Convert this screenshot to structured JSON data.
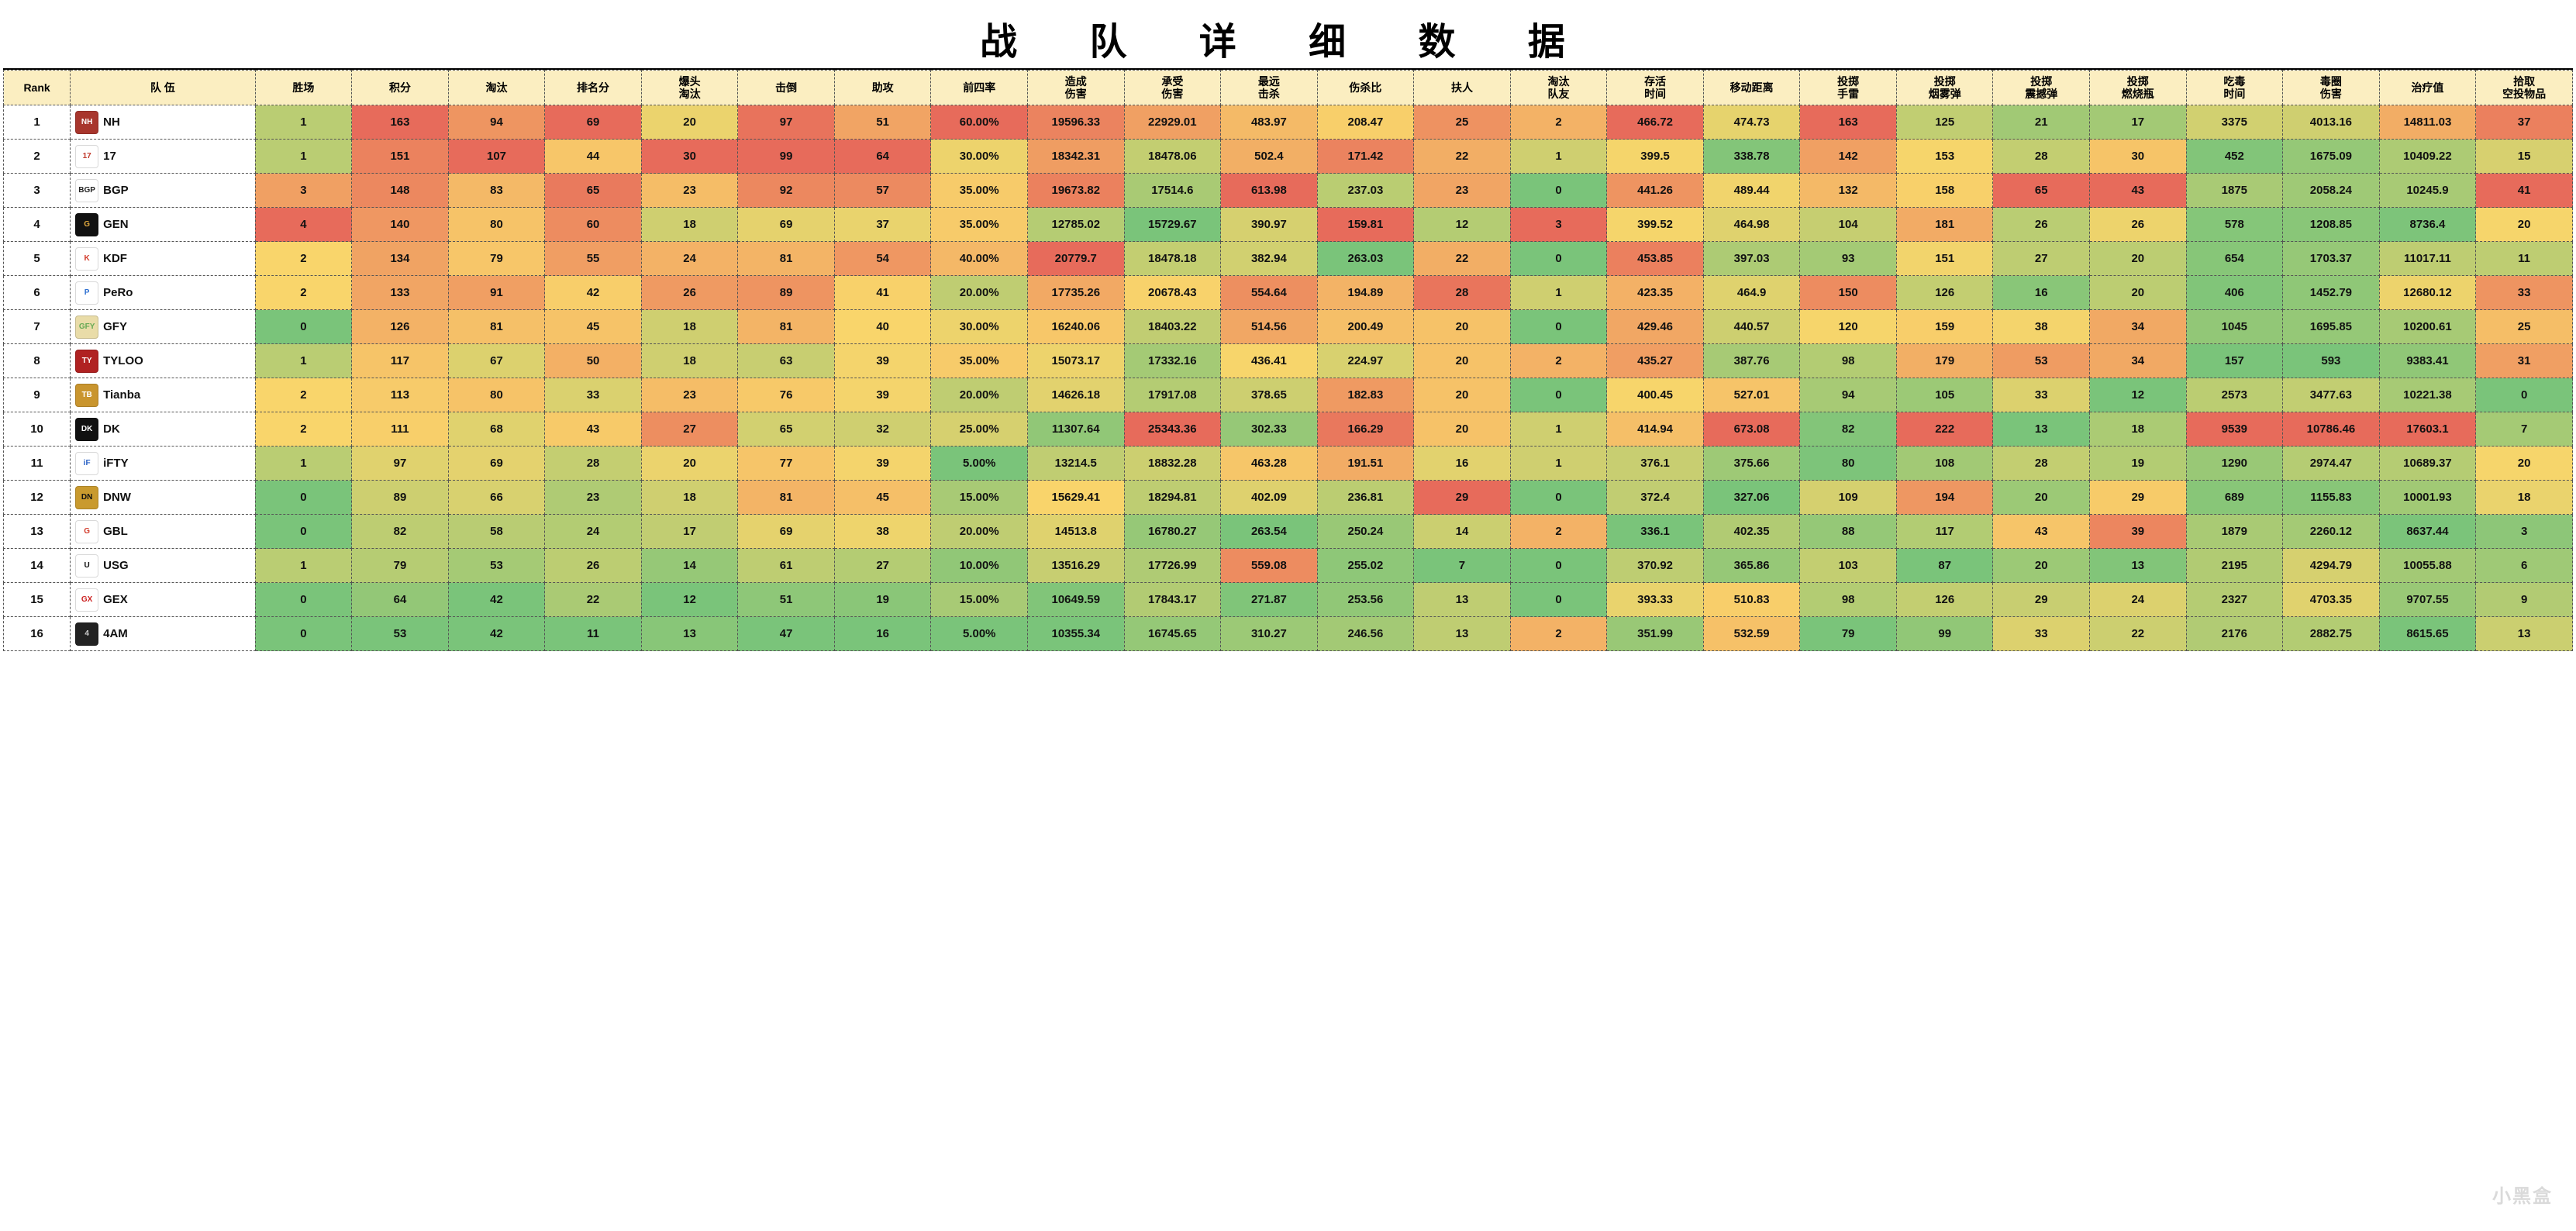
{
  "title": "战 队 详 细 数 据",
  "watermark": "小黑盒",
  "heatmap_palette": {
    "comment": "5-step red→yellow→green scale used per column (high vs low depends on metric)",
    "colors": [
      "#e76b5b",
      "#f2a55f",
      "#f9d56b",
      "#c9dd7a",
      "#7ac47a"
    ]
  },
  "columns": [
    {
      "key": "rank",
      "label": "Rank"
    },
    {
      "key": "team",
      "label": "队 伍"
    },
    {
      "key": "wins",
      "label": "胜场"
    },
    {
      "key": "points",
      "label": "积分"
    },
    {
      "key": "elims",
      "label": "淘汰"
    },
    {
      "key": "rank_pts",
      "label": "排名分"
    },
    {
      "key": "hs_elims",
      "label": "爆头\n淘汰"
    },
    {
      "key": "knocks",
      "label": "击倒"
    },
    {
      "key": "assists",
      "label": "助攻"
    },
    {
      "key": "top4",
      "label": "前四率"
    },
    {
      "key": "dmg_dealt",
      "label": "造成\n伤害"
    },
    {
      "key": "dmg_taken",
      "label": "承受\n伤害"
    },
    {
      "key": "longest_kill",
      "label": "最远\n击杀"
    },
    {
      "key": "dmg_kill_ratio",
      "label": "伤杀比"
    },
    {
      "key": "revives",
      "label": "扶人"
    },
    {
      "key": "tk",
      "label": "淘汰\n队友"
    },
    {
      "key": "survive",
      "label": "存活\n时间"
    },
    {
      "key": "move_dist",
      "label": "移动距离"
    },
    {
      "key": "frag",
      "label": "投掷\n手雷"
    },
    {
      "key": "smoke",
      "label": "投掷\n烟雾弹"
    },
    {
      "key": "stun",
      "label": "投掷\n震撼弹"
    },
    {
      "key": "molotov",
      "label": "投掷\n燃烧瓶"
    },
    {
      "key": "poison_time",
      "label": "吃毒\n时间"
    },
    {
      "key": "zone_dmg",
      "label": "毒圈\n伤害"
    },
    {
      "key": "heal",
      "label": "治疗值"
    },
    {
      "key": "airdrop",
      "label": "拾取\n空投物品"
    }
  ],
  "team_logos": {
    "NH": {
      "bg": "#a8362d",
      "fg": "#fff",
      "txt": "NH"
    },
    "17": {
      "bg": "#ffffff",
      "fg": "#c0392b",
      "txt": "17"
    },
    "BGP": {
      "bg": "#ffffff",
      "fg": "#222",
      "txt": "BGP"
    },
    "GEN": {
      "bg": "#111111",
      "fg": "#e1a93e",
      "txt": "G"
    },
    "KDF": {
      "bg": "#ffffff",
      "fg": "#d23b2b",
      "txt": "K"
    },
    "PeRo": {
      "bg": "#ffffff",
      "fg": "#2c6fd1",
      "txt": "P"
    },
    "GFY": {
      "bg": "#e9dca8",
      "fg": "#6a5",
      "txt": "GFY"
    },
    "TYLOO": {
      "bg": "#b02222",
      "fg": "#fff",
      "txt": "TY"
    },
    "Tianba": {
      "bg": "#c9952e",
      "fg": "#fff",
      "txt": "TB"
    },
    "DK": {
      "bg": "#111111",
      "fg": "#fff",
      "txt": "DK"
    },
    "iFTY": {
      "bg": "#ffffff",
      "fg": "#2860c4",
      "txt": "iF"
    },
    "DNW": {
      "bg": "#c99a2e",
      "fg": "#111",
      "txt": "DN"
    },
    "GBL": {
      "bg": "#ffffff",
      "fg": "#d23b2b",
      "txt": "G"
    },
    "USG": {
      "bg": "#ffffff",
      "fg": "#111",
      "txt": "U"
    },
    "GEX": {
      "bg": "#ffffff",
      "fg": "#c22",
      "txt": "GX"
    },
    "4AM": {
      "bg": "#222222",
      "fg": "#ccc",
      "txt": "4"
    }
  },
  "metric_direction_high_is_red": {
    "wins": true,
    "points": true,
    "elims": true,
    "rank_pts": true,
    "hs_elims": true,
    "knocks": true,
    "assists": true,
    "top4": true,
    "dmg_dealt": true,
    "dmg_taken": true,
    "longest_kill": true,
    "dmg_kill_ratio": false,
    "revives": true,
    "tk": true,
    "survive": true,
    "move_dist": true,
    "frag": true,
    "smoke": true,
    "stun": true,
    "molotov": true,
    "poison_time": true,
    "zone_dmg": true,
    "heal": true,
    "airdrop": true
  },
  "rows": [
    {
      "rank": 1,
      "team": "NH",
      "wins": 1,
      "points": 163,
      "elims": 94,
      "rank_pts": 69,
      "hs_elims": 20,
      "knocks": 97,
      "assists": 51,
      "top4": "60.00%",
      "dmg_dealt": 19596.33,
      "dmg_taken": 22929.01,
      "longest_kill": 483.97,
      "dmg_kill_ratio": 208.47,
      "revives": 25,
      "tk": 2,
      "survive": 466.72,
      "move_dist": 474.73,
      "frag": 163,
      "smoke": 125,
      "stun": 21,
      "molotov": 17,
      "poison_time": 3375,
      "zone_dmg": 4013.16,
      "heal": 14811.03,
      "airdrop": 37
    },
    {
      "rank": 2,
      "team": "17",
      "wins": 1,
      "points": 151,
      "elims": 107,
      "rank_pts": 44,
      "hs_elims": 30,
      "knocks": 99,
      "assists": 64,
      "top4": "30.00%",
      "dmg_dealt": 18342.31,
      "dmg_taken": 18478.06,
      "longest_kill": 502.4,
      "dmg_kill_ratio": 171.42,
      "revives": 22,
      "tk": 1,
      "survive": 399.5,
      "move_dist": 338.78,
      "frag": 142,
      "smoke": 153,
      "stun": 28,
      "molotov": 30,
      "poison_time": 452,
      "zone_dmg": 1675.09,
      "heal": 10409.22,
      "airdrop": 15
    },
    {
      "rank": 3,
      "team": "BGP",
      "wins": 3,
      "points": 148,
      "elims": 83,
      "rank_pts": 65,
      "hs_elims": 23,
      "knocks": 92,
      "assists": 57,
      "top4": "35.00%",
      "dmg_dealt": 19673.82,
      "dmg_taken": 17514.6,
      "longest_kill": 613.98,
      "dmg_kill_ratio": 237.03,
      "revives": 23,
      "tk": 0,
      "survive": 441.26,
      "move_dist": 489.44,
      "frag": 132,
      "smoke": 158,
      "stun": 65,
      "molotov": 43,
      "poison_time": 1875,
      "zone_dmg": 2058.24,
      "heal": 10245.9,
      "airdrop": 41
    },
    {
      "rank": 4,
      "team": "GEN",
      "wins": 4,
      "points": 140,
      "elims": 80,
      "rank_pts": 60,
      "hs_elims": 18,
      "knocks": 69,
      "assists": 37,
      "top4": "35.00%",
      "dmg_dealt": 12785.02,
      "dmg_taken": 15729.67,
      "longest_kill": 390.97,
      "dmg_kill_ratio": 159.81,
      "revives": 12,
      "tk": 3,
      "survive": 399.52,
      "move_dist": 464.98,
      "frag": 104,
      "smoke": 181,
      "stun": 26,
      "molotov": 26,
      "poison_time": 578,
      "zone_dmg": 1208.85,
      "heal": 8736.4,
      "airdrop": 20
    },
    {
      "rank": 5,
      "team": "KDF",
      "wins": 2,
      "points": 134,
      "elims": 79,
      "rank_pts": 55,
      "hs_elims": 24,
      "knocks": 81,
      "assists": 54,
      "top4": "40.00%",
      "dmg_dealt": 20779.7,
      "dmg_taken": 18478.18,
      "longest_kill": 382.94,
      "dmg_kill_ratio": 263.03,
      "revives": 22,
      "tk": 0,
      "survive": 453.85,
      "move_dist": 397.03,
      "frag": 93,
      "smoke": 151,
      "stun": 27,
      "molotov": 20,
      "poison_time": 654,
      "zone_dmg": 1703.37,
      "heal": 11017.11,
      "airdrop": 11
    },
    {
      "rank": 6,
      "team": "PeRo",
      "wins": 2,
      "points": 133,
      "elims": 91,
      "rank_pts": 42,
      "hs_elims": 26,
      "knocks": 89,
      "assists": 41,
      "top4": "20.00%",
      "dmg_dealt": 17735.26,
      "dmg_taken": 20678.43,
      "longest_kill": 554.64,
      "dmg_kill_ratio": 194.89,
      "revives": 28,
      "tk": 1,
      "survive": 423.35,
      "move_dist": 464.9,
      "frag": 150,
      "smoke": 126,
      "stun": 16,
      "molotov": 20,
      "poison_time": 406,
      "zone_dmg": 1452.79,
      "heal": 12680.12,
      "airdrop": 33
    },
    {
      "rank": 7,
      "team": "GFY",
      "wins": 0,
      "points": 126,
      "elims": 81,
      "rank_pts": 45,
      "hs_elims": 18,
      "knocks": 81,
      "assists": 40,
      "top4": "30.00%",
      "dmg_dealt": 16240.06,
      "dmg_taken": 18403.22,
      "longest_kill": 514.56,
      "dmg_kill_ratio": 200.49,
      "revives": 20,
      "tk": 0,
      "survive": 429.46,
      "move_dist": 440.57,
      "frag": 120,
      "smoke": 159,
      "stun": 38,
      "molotov": 34,
      "poison_time": 1045,
      "zone_dmg": 1695.85,
      "heal": 10200.61,
      "airdrop": 25
    },
    {
      "rank": 8,
      "team": "TYLOO",
      "wins": 1,
      "points": 117,
      "elims": 67,
      "rank_pts": 50,
      "hs_elims": 18,
      "knocks": 63,
      "assists": 39,
      "top4": "35.00%",
      "dmg_dealt": 15073.17,
      "dmg_taken": 17332.16,
      "longest_kill": 436.41,
      "dmg_kill_ratio": 224.97,
      "revives": 20,
      "tk": 2,
      "survive": 435.27,
      "move_dist": 387.76,
      "frag": 98,
      "smoke": 179,
      "stun": 53,
      "molotov": 34,
      "poison_time": 157,
      "zone_dmg": 593.0,
      "heal": 9383.41,
      "airdrop": 31
    },
    {
      "rank": 9,
      "team": "Tianba",
      "wins": 2,
      "points": 113,
      "elims": 80,
      "rank_pts": 33,
      "hs_elims": 23,
      "knocks": 76,
      "assists": 39,
      "top4": "20.00%",
      "dmg_dealt": 14626.18,
      "dmg_taken": 17917.08,
      "longest_kill": 378.65,
      "dmg_kill_ratio": 182.83,
      "revives": 20,
      "tk": 0,
      "survive": 400.45,
      "move_dist": 527.01,
      "frag": 94,
      "smoke": 105,
      "stun": 33,
      "molotov": 12,
      "poison_time": 2573,
      "zone_dmg": 3477.63,
      "heal": 10221.38,
      "airdrop": 0
    },
    {
      "rank": 10,
      "team": "DK",
      "wins": 2,
      "points": 111,
      "elims": 68,
      "rank_pts": 43,
      "hs_elims": 27,
      "knocks": 65,
      "assists": 32,
      "top4": "25.00%",
      "dmg_dealt": 11307.64,
      "dmg_taken": 25343.36,
      "longest_kill": 302.33,
      "dmg_kill_ratio": 166.29,
      "revives": 20,
      "tk": 1,
      "survive": 414.94,
      "move_dist": 673.08,
      "frag": 82,
      "smoke": 222,
      "stun": 13,
      "molotov": 18,
      "poison_time": 9539,
      "zone_dmg": 10786.46,
      "heal": 17603.1,
      "airdrop": 7
    },
    {
      "rank": 11,
      "team": "iFTY",
      "wins": 1,
      "points": 97,
      "elims": 69,
      "rank_pts": 28,
      "hs_elims": 20,
      "knocks": 77,
      "assists": 39,
      "top4": "5.00%",
      "dmg_dealt": 13214.5,
      "dmg_taken": 18832.28,
      "longest_kill": 463.28,
      "dmg_kill_ratio": 191.51,
      "revives": 16,
      "tk": 1,
      "survive": 376.1,
      "move_dist": 375.66,
      "frag": 80,
      "smoke": 108,
      "stun": 28,
      "molotov": 19,
      "poison_time": 1290,
      "zone_dmg": 2974.47,
      "heal": 10689.37,
      "airdrop": 20
    },
    {
      "rank": 12,
      "team": "DNW",
      "wins": 0,
      "points": 89,
      "elims": 66,
      "rank_pts": 23,
      "hs_elims": 18,
      "knocks": 81,
      "assists": 45,
      "top4": "15.00%",
      "dmg_dealt": 15629.41,
      "dmg_taken": 18294.81,
      "longest_kill": 402.09,
      "dmg_kill_ratio": 236.81,
      "revives": 29,
      "tk": 0,
      "survive": 372.4,
      "move_dist": 327.06,
      "frag": 109,
      "smoke": 194,
      "stun": 20,
      "molotov": 29,
      "poison_time": 689,
      "zone_dmg": 1155.83,
      "heal": 10001.93,
      "airdrop": 18
    },
    {
      "rank": 13,
      "team": "GBL",
      "wins": 0,
      "points": 82,
      "elims": 58,
      "rank_pts": 24,
      "hs_elims": 17,
      "knocks": 69,
      "assists": 38,
      "top4": "20.00%",
      "dmg_dealt": 14513.8,
      "dmg_taken": 16780.27,
      "longest_kill": 263.54,
      "dmg_kill_ratio": 250.24,
      "revives": 14,
      "tk": 2,
      "survive": 336.1,
      "move_dist": 402.35,
      "frag": 88,
      "smoke": 117,
      "stun": 43,
      "molotov": 39,
      "poison_time": 1879,
      "zone_dmg": 2260.12,
      "heal": 8637.44,
      "airdrop": 3
    },
    {
      "rank": 14,
      "team": "USG",
      "wins": 1,
      "points": 79,
      "elims": 53,
      "rank_pts": 26,
      "hs_elims": 14,
      "knocks": 61,
      "assists": 27,
      "top4": "10.00%",
      "dmg_dealt": 13516.29,
      "dmg_taken": 17726.99,
      "longest_kill": 559.08,
      "dmg_kill_ratio": 255.02,
      "revives": 7,
      "tk": 0,
      "survive": 370.92,
      "move_dist": 365.86,
      "frag": 103,
      "smoke": 87,
      "stun": 20,
      "molotov": 13,
      "poison_time": 2195,
      "zone_dmg": 4294.79,
      "heal": 10055.88,
      "airdrop": 6
    },
    {
      "rank": 15,
      "team": "GEX",
      "wins": 0,
      "points": 64,
      "elims": 42,
      "rank_pts": 22,
      "hs_elims": 12,
      "knocks": 51,
      "assists": 19,
      "top4": "15.00%",
      "dmg_dealt": 10649.59,
      "dmg_taken": 17843.17,
      "longest_kill": 271.87,
      "dmg_kill_ratio": 253.56,
      "revives": 13,
      "tk": 0,
      "survive": 393.33,
      "move_dist": 510.83,
      "frag": 98,
      "smoke": 126,
      "stun": 29,
      "molotov": 24,
      "poison_time": 2327,
      "zone_dmg": 4703.35,
      "heal": 9707.55,
      "airdrop": 9
    },
    {
      "rank": 16,
      "team": "4AM",
      "wins": 0,
      "points": 53,
      "elims": 42,
      "rank_pts": 11,
      "hs_elims": 13,
      "knocks": 47,
      "assists": 16,
      "top4": "5.00%",
      "dmg_dealt": 10355.34,
      "dmg_taken": 16745.65,
      "longest_kill": 310.27,
      "dmg_kill_ratio": 246.56,
      "revives": 13,
      "tk": 2,
      "survive": 351.99,
      "move_dist": 532.59,
      "frag": 79,
      "smoke": 99,
      "stun": 33,
      "molotov": 22,
      "poison_time": 2176,
      "zone_dmg": 2882.75,
      "heal": 8615.65,
      "airdrop": 13
    }
  ]
}
